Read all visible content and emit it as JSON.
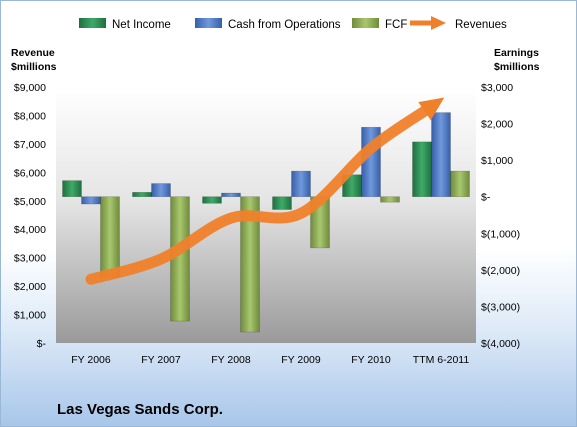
{
  "company": "Las Vegas Sands Corp.",
  "chart_data": {
    "type": "bar",
    "categories": [
      "FY 2006",
      "FY 2007",
      "FY 2008",
      "FY 2009",
      "FY 2010",
      "TTM 6-2011"
    ],
    "left_axis": {
      "label_line1": "Revenue",
      "label_line2": "$millions",
      "range": [
        0,
        9000
      ],
      "ticks": [
        "$-",
        "$1,000",
        "$2,000",
        "$3,000",
        "$4,000",
        "$5,000",
        "$6,000",
        "$7,000",
        "$8,000",
        "$9,000"
      ]
    },
    "right_axis": {
      "label_line1": "Earnings",
      "label_line2": "$millions",
      "range": [
        -4000,
        3000
      ],
      "ticks": [
        "$(4,000)",
        "$(3,000)",
        "$(2,000)",
        "$(1,000)",
        "$-",
        "$1,000",
        "$2,000",
        "$3,000"
      ]
    },
    "series": [
      {
        "name": "Net Income",
        "axis": "right",
        "kind": "bar",
        "color": "#2e8b57",
        "values": [
          440,
          120,
          -180,
          -350,
          600,
          1500
        ]
      },
      {
        "name": "Cash from Operations",
        "axis": "right",
        "kind": "bar",
        "color": "#4f7ccc",
        "values": [
          -200,
          360,
          100,
          700,
          1900,
          2300
        ]
      },
      {
        "name": "FCF",
        "axis": "right",
        "kind": "bar",
        "color": "#8fb058",
        "values": [
          -2200,
          -3400,
          -3700,
          -1400,
          -150,
          700
        ]
      },
      {
        "name": "Revenues",
        "axis": "left",
        "kind": "line",
        "color": "#f07f2a",
        "values": [
          2240,
          2950,
          4390,
          4560,
          6850,
          8550
        ]
      }
    ],
    "legend_position": "top",
    "grid": false
  }
}
